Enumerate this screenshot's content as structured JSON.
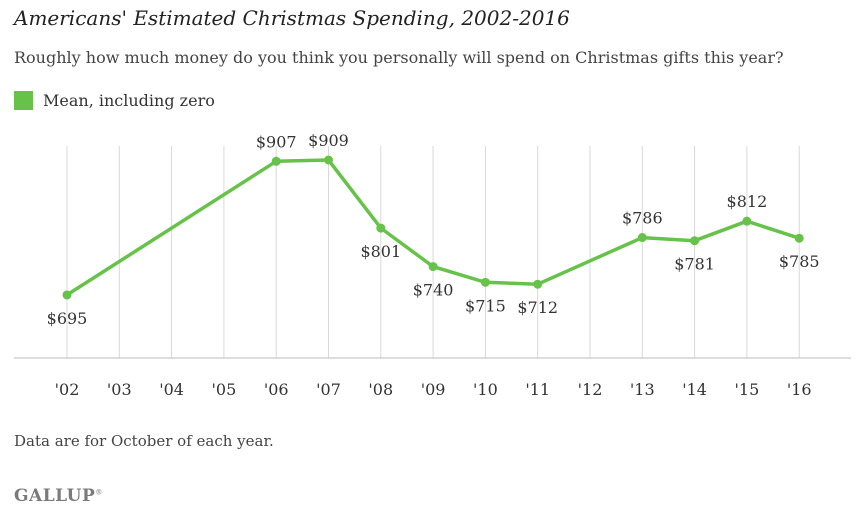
{
  "chart_data": {
    "type": "line",
    "title": "Americans' Estimated Christmas Spending, 2002-2016",
    "subtitle": "Roughly how much money do you think you personally will spend on Christmas gifts this year?",
    "categories": [
      "'02",
      "'03",
      "'04",
      "'05",
      "'06",
      "'07",
      "'08",
      "'09",
      "'10",
      "'11",
      "'12",
      "'13",
      "'14",
      "'15",
      "'16"
    ],
    "series": [
      {
        "name": "Mean, including zero",
        "color": "#67c24a",
        "values": [
          695,
          null,
          null,
          null,
          907,
          909,
          801,
          740,
          715,
          712,
          null,
          786,
          781,
          812,
          785
        ],
        "labels": [
          "$695",
          null,
          null,
          null,
          "$907",
          "$909",
          "$801",
          "$740",
          "$715",
          "$712",
          null,
          "$786",
          "$781",
          "$812",
          "$785"
        ]
      }
    ],
    "label_positions": [
      "below",
      null,
      null,
      null,
      "above",
      "above",
      "below",
      "below",
      "below",
      "below",
      null,
      "above",
      "below",
      "above",
      "below"
    ],
    "ylim": [
      595,
      1020
    ],
    "xlabel": "",
    "ylabel": "",
    "grid": "vertical"
  },
  "note": "Data are for October of each year.",
  "source_logo": "GALLUP",
  "legend_label": "Mean, including zero"
}
